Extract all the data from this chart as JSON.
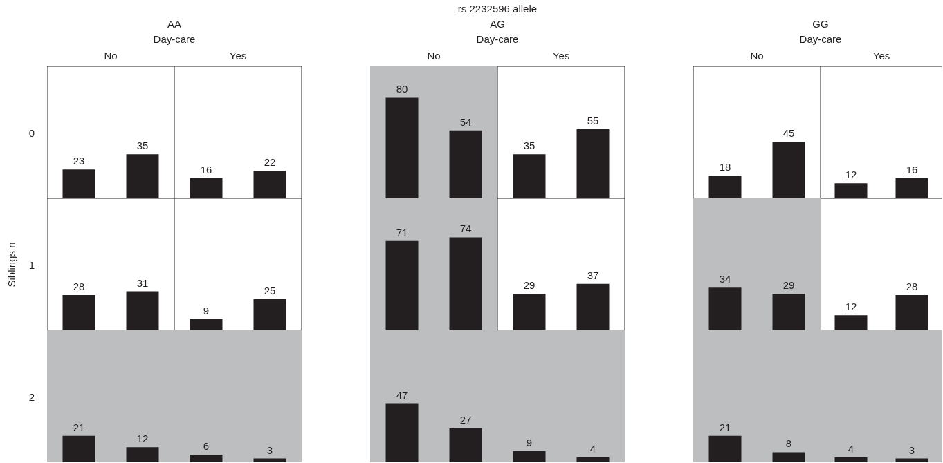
{
  "chart_data": [
    {
      "type": "bar",
      "annotations": [
        "AA",
        "Day-care"
      ],
      "x2label": "No",
      "subtitle": "0",
      "categories": [
        null,
        null
      ],
      "values": [
        23,
        35
      ],
      "color": "#231f20",
      "ylim": [
        0,
        105
      ],
      "data_labels": true,
      "tick_labels": false
    },
    {
      "type": "bar",
      "x2label": "Yes",
      "categories": [
        null,
        null
      ],
      "values": [
        16,
        22
      ],
      "color": "#231f20",
      "ylim": [
        0,
        105
      ],
      "data_labels": true,
      "tick_labels": false
    },
    {
      "type": "bar",
      "title": "rs 2232596 allele",
      "annotations": [
        "AG",
        "Day-care"
      ],
      "x2label": "No",
      "categories": [
        null,
        null
      ],
      "values": [
        80,
        54
      ],
      "color": "#231f20",
      "ylim": [
        0,
        105
      ],
      "data_labels": true,
      "tick_labels": false,
      "bands": [
        {
          "axis": "y",
          "from": 0,
          "to": 105,
          "color": "#bcbec0"
        }
      ]
    },
    {
      "type": "bar",
      "x2label": "Yes",
      "categories": [
        null,
        null
      ],
      "values": [
        35,
        55
      ],
      "color": "#231f20",
      "ylim": [
        0,
        105
      ],
      "data_labels": true,
      "tick_labels": false
    },
    {
      "type": "bar",
      "annotations": [
        "GG",
        "Day-care"
      ],
      "x2label": "No",
      "categories": [
        null,
        null
      ],
      "values": [
        18,
        45
      ],
      "color": "#231f20",
      "ylim": [
        0,
        105
      ],
      "data_labels": true,
      "tick_labels": false
    },
    {
      "type": "bar",
      "x2label": "Yes",
      "categories": [
        null,
        null
      ],
      "values": [
        12,
        16
      ],
      "color": "#231f20",
      "ylim": [
        0,
        105
      ],
      "data_labels": true,
      "tick_labels": false
    },
    {
      "type": "bar",
      "ylabel": "Siblings n",
      "subtitle": "1",
      "categories": [
        null,
        null
      ],
      "values": [
        28,
        31
      ],
      "color": "#231f20",
      "ylim": [
        0,
        105
      ],
      "data_labels": true,
      "tick_labels": false
    },
    {
      "type": "bar",
      "categories": [
        null,
        null
      ],
      "values": [
        9,
        25
      ],
      "color": "#231f20",
      "ylim": [
        0,
        105
      ],
      "data_labels": true,
      "tick_labels": false
    },
    {
      "type": "bar",
      "categories": [
        null,
        null
      ],
      "values": [
        71,
        74
      ],
      "color": "#231f20",
      "ylim": [
        0,
        105
      ],
      "data_labels": true,
      "tick_labels": false,
      "bands": [
        {
          "axis": "y",
          "from": 0,
          "to": 105,
          "color": "#bcbec0"
        }
      ]
    },
    {
      "type": "bar",
      "categories": [
        null,
        null
      ],
      "values": [
        29,
        37
      ],
      "color": "#231f20",
      "ylim": [
        0,
        105
      ],
      "data_labels": true,
      "tick_labels": false
    },
    {
      "type": "bar",
      "categories": [
        null,
        null
      ],
      "values": [
        34,
        29
      ],
      "color": "#231f20",
      "ylim": [
        0,
        105
      ],
      "data_labels": true,
      "tick_labels": false,
      "bands": [
        {
          "axis": "y",
          "from": 0,
          "to": 105,
          "color": "#bcbec0"
        }
      ]
    },
    {
      "type": "bar",
      "categories": [
        null,
        null
      ],
      "values": [
        12,
        28
      ],
      "color": "#231f20",
      "ylim": [
        0,
        105
      ],
      "data_labels": true,
      "tick_labels": false
    },
    {
      "type": "bar",
      "subtitle": "2",
      "categories": [
        null,
        null
      ],
      "values": [
        21,
        12
      ],
      "color": "#231f20",
      "ylim": [
        0,
        105
      ],
      "data_labels": true,
      "tick_labels": false,
      "bands": [
        {
          "axis": "y",
          "from": 0,
          "to": 105,
          "color": "#bcbec0"
        }
      ]
    },
    {
      "type": "bar",
      "categories": [
        null,
        null
      ],
      "values": [
        6,
        3
      ],
      "color": "#231f20",
      "ylim": [
        0,
        105
      ],
      "data_labels": true,
      "tick_labels": false,
      "bands": [
        {
          "axis": "y",
          "from": 0,
          "to": 105,
          "color": "#bcbec0"
        }
      ]
    },
    {
      "type": "bar",
      "categories": [
        null,
        null
      ],
      "values": [
        47,
        27
      ],
      "color": "#231f20",
      "ylim": [
        0,
        105
      ],
      "data_labels": true,
      "tick_labels": false,
      "bands": [
        {
          "axis": "y",
          "from": 0,
          "to": 105,
          "color": "#bcbec0"
        }
      ]
    },
    {
      "type": "bar",
      "categories": [
        null,
        null
      ],
      "values": [
        9,
        4
      ],
      "color": "#231f20",
      "ylim": [
        0,
        105
      ],
      "data_labels": true,
      "tick_labels": false,
      "bands": [
        {
          "axis": "y",
          "from": 0,
          "to": 105,
          "color": "#bcbec0"
        }
      ]
    },
    {
      "type": "bar",
      "categories": [
        null,
        null
      ],
      "values": [
        21,
        8
      ],
      "color": "#231f20",
      "ylim": [
        0,
        105
      ],
      "data_labels": true,
      "tick_labels": false,
      "bands": [
        {
          "axis": "y",
          "from": 0,
          "to": 105,
          "color": "#bcbec0"
        }
      ]
    },
    {
      "type": "bar",
      "categories": [
        null,
        null
      ],
      "values": [
        4,
        3
      ],
      "color": "#231f20",
      "ylim": [
        0,
        105
      ],
      "data_labels": true,
      "tick_labels": false,
      "bands": [
        {
          "axis": "y",
          "from": 0,
          "to": 105,
          "color": "#bcbec0"
        }
      ]
    }
  ]
}
